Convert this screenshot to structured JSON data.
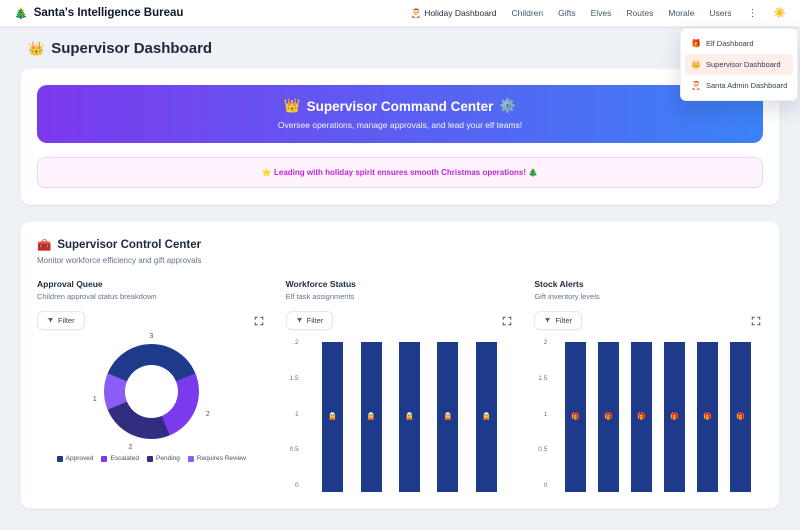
{
  "colors": {
    "banner_gradient_from": "#7c3aed",
    "banner_gradient_to": "#3b82f6",
    "alert_bg": "#fdf4ff",
    "alert_border": "#f5d0fe",
    "alert_text": "#c026d3",
    "dropdown_active_bg": "#fdeeea",
    "bar_color": "#1e3a8a"
  },
  "nav": {
    "brand_icon": "🎄",
    "brand": "Santa's Intelligence Bureau",
    "items": [
      {
        "icon": "🎅",
        "label": "Holiday Dashboard"
      },
      {
        "label": "Children"
      },
      {
        "label": "Gifts"
      },
      {
        "label": "Elves"
      },
      {
        "label": "Routes"
      },
      {
        "label": "Morale"
      },
      {
        "label": "Users"
      }
    ],
    "kebab_icon": "⋮",
    "theme_icon": "☀️"
  },
  "dropdown": {
    "items": [
      {
        "icon": "🎁",
        "label": "Elf Dashboard"
      },
      {
        "icon": "👑",
        "label": "Supervisor Dashboard"
      },
      {
        "icon": "🎅",
        "label": "Santa Admin Dashboard"
      }
    ]
  },
  "page": {
    "icon": "👑",
    "title": "Supervisor Dashboard"
  },
  "banner": {
    "icon_left": "👑",
    "title": "Supervisor Command Center",
    "icon_right": "⚙️",
    "subtitle": "Oversee operations, manage approvals, and lead your elf teams!"
  },
  "alert": {
    "text": "⭐ Leading with holiday spirit ensures smooth Christmas operations! 🎄"
  },
  "control_center": {
    "icon": "🧰",
    "title": "Supervisor Control Center",
    "subtitle": "Monitor workforce efficiency and gift approvals",
    "filter_label": "Filter"
  },
  "chart_data": [
    {
      "type": "pie",
      "title": "Approval Queue",
      "subtitle": "Children approval status breakdown",
      "labels": [
        "Approved",
        "Escalated",
        "Pending",
        "Requires Review"
      ],
      "values": [
        3,
        2,
        2,
        1
      ],
      "colors": [
        "#1e3a8a",
        "#7c3aed",
        "#312e81",
        "#8b5cf6"
      ],
      "donut": true,
      "legend_position": "bottom"
    },
    {
      "type": "bar",
      "title": "Workforce Status",
      "subtitle": "Elf task assignments",
      "values": [
        2,
        2,
        2,
        2,
        2
      ],
      "bar_icon": "🧝",
      "bar_color": "#1e3a8a",
      "ylim": [
        0,
        2
      ],
      "yticks": [
        0,
        0.5,
        1,
        1.5,
        2
      ],
      "grid": false
    },
    {
      "type": "bar",
      "title": "Stock Alerts",
      "subtitle": "Gift inventory levels",
      "values": [
        2,
        2,
        2,
        2,
        2,
        2
      ],
      "bar_icon": "🎁",
      "bar_color": "#1e3a8a",
      "ylim": [
        0,
        2
      ],
      "yticks": [
        0,
        0.5,
        1,
        1.5,
        2
      ],
      "grid": false
    }
  ]
}
